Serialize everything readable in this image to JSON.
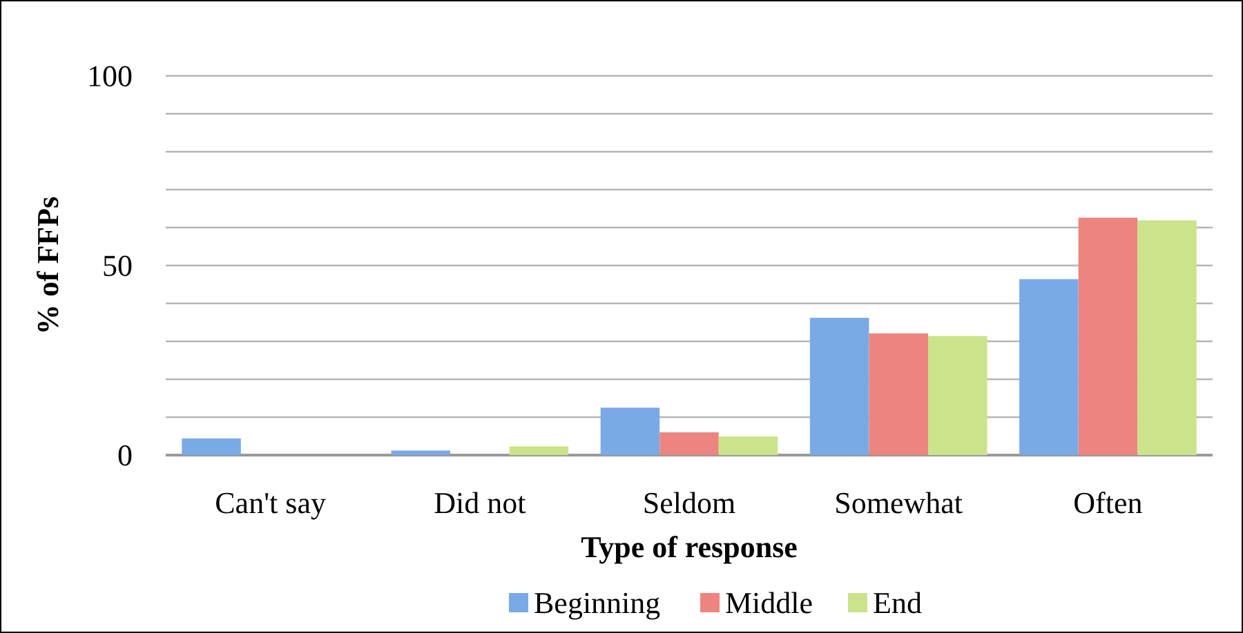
{
  "chart_data": {
    "type": "bar",
    "xlabel": "Type of response",
    "ylabel": "% of FFPs",
    "categories": [
      "Can't say",
      "Did not",
      "Seldom",
      "Somewhat",
      "Often"
    ],
    "series": [
      {
        "name": "Beginning",
        "color": "#7aaae6",
        "values": [
          4.4,
          1.2,
          12.5,
          36.2,
          46.4
        ]
      },
      {
        "name": "Middle",
        "color": "#ec8580",
        "values": [
          0,
          0,
          6,
          32.1,
          62.6
        ]
      },
      {
        "name": "End",
        "color": "#cbe38a",
        "values": [
          0,
          2.3,
          4.9,
          31.4,
          61.9
        ]
      }
    ],
    "ylim": [
      0,
      100
    ],
    "yticks": [
      0,
      {
        "value": 10,
        "label": null
      },
      {
        "value": 20,
        "label": null
      },
      {
        "value": 30,
        "label": null
      },
      {
        "value": 40,
        "label": null
      },
      50,
      {
        "value": 60,
        "label": null
      },
      {
        "value": 70,
        "label": null
      },
      {
        "value": 80,
        "label": null
      },
      {
        "value": 90,
        "label": null
      },
      100
    ],
    "grid": "y",
    "legend": "bottom"
  }
}
